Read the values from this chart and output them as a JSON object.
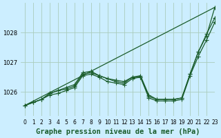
{
  "title": "Graphe pression niveau de la mer (hPa)",
  "background_color": "#cceeff",
  "grid_color": "#aaccbb",
  "line_color": "#1a5c2a",
  "xlim": [
    -0.5,
    23
  ],
  "ylim": [
    1025.2,
    1029.0
  ],
  "yticks": [
    1026,
    1027,
    1028
  ],
  "xticks": [
    0,
    1,
    2,
    3,
    4,
    5,
    6,
    7,
    8,
    9,
    10,
    11,
    12,
    13,
    14,
    15,
    16,
    17,
    18,
    19,
    20,
    21,
    22,
    23
  ],
  "series": [
    {
      "x": [
        0,
        23
      ],
      "y": [
        1025.55,
        1028.85
      ],
      "has_markers": false
    },
    {
      "x": [
        0,
        1,
        2,
        3,
        4,
        5,
        6,
        7,
        8,
        9,
        10,
        11,
        12,
        13,
        14,
        15,
        16,
        17,
        18,
        19,
        20,
        21,
        22,
        23
      ],
      "y": [
        1025.55,
        1025.65,
        1025.75,
        1025.95,
        1026.05,
        1026.1,
        1026.2,
        1026.6,
        1026.65,
        1026.55,
        1026.45,
        1026.35,
        1026.3,
        1026.5,
        1026.5,
        1025.85,
        1025.75,
        1025.75,
        1025.75,
        1025.8,
        1026.6,
        1027.35,
        1027.9,
        1028.85
      ],
      "has_markers": true
    },
    {
      "x": [
        0,
        1,
        2,
        3,
        4,
        5,
        6,
        7,
        8,
        9,
        10,
        11,
        12,
        13,
        14,
        15,
        16,
        17,
        18,
        19,
        20,
        21,
        22,
        23
      ],
      "y": [
        1025.55,
        1025.65,
        1025.75,
        1025.95,
        1026.05,
        1026.15,
        1026.25,
        1026.65,
        1026.7,
        1026.55,
        1026.45,
        1026.4,
        1026.35,
        1026.5,
        1026.55,
        1025.9,
        1025.75,
        1025.75,
        1025.75,
        1025.8,
        1026.6,
        1027.35,
        1027.95,
        1028.5
      ],
      "has_markers": true
    },
    {
      "x": [
        0,
        1,
        2,
        3,
        4,
        5,
        6,
        7,
        8,
        9,
        10,
        11,
        12,
        13,
        14,
        15,
        16,
        17,
        18,
        19,
        20,
        21,
        22,
        23
      ],
      "y": [
        1025.55,
        1025.65,
        1025.75,
        1025.9,
        1025.95,
        1026.05,
        1026.15,
        1026.55,
        1026.6,
        1026.5,
        1026.35,
        1026.3,
        1026.25,
        1026.45,
        1026.5,
        1025.8,
        1025.7,
        1025.7,
        1025.7,
        1025.75,
        1026.55,
        1027.2,
        1027.75,
        1028.35
      ],
      "has_markers": true
    }
  ],
  "title_fontsize": 7.5,
  "tick_fontsize": 5.5,
  "marker_size": 2.5,
  "line_width": 0.9
}
